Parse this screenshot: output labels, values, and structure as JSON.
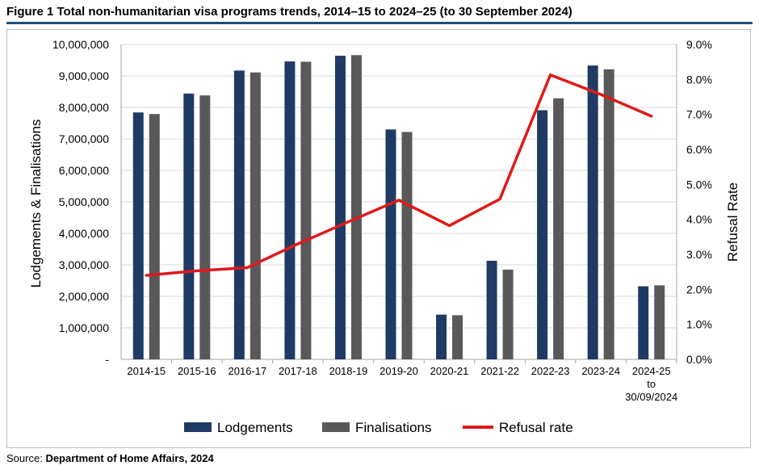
{
  "figure": {
    "title": "Figure 1 Total non-humanitarian visa programs trends, 2014–15 to 2024–25 (to 30 September 2024)"
  },
  "source": {
    "label": "Source:",
    "text": "Department of Home Affairs, 2024"
  },
  "colors": {
    "lodgements": "#1f3b64",
    "finalisations": "#595959",
    "refusal": "#e0191b",
    "grid": "#d9d9d9",
    "axis": "#a6a6a6"
  },
  "chart_data": {
    "type": "bar",
    "title": "Total non-humanitarian visa programs trends",
    "categories": [
      "2014-15",
      "2015-16",
      "2016-17",
      "2017-18",
      "2018-19",
      "2019-20",
      "2020-21",
      "2021-22",
      "2022-23",
      "2023-24",
      "2024-25\nto\n30/09/2024"
    ],
    "series": [
      {
        "name": "Lodgements",
        "kind": "bar",
        "axis": "left",
        "values": [
          7840000,
          8440000,
          9170000,
          9460000,
          9640000,
          7300000,
          1420000,
          3130000,
          7910000,
          9330000,
          2320000
        ]
      },
      {
        "name": "Finalisations",
        "kind": "bar",
        "axis": "left",
        "values": [
          7790000,
          8380000,
          9110000,
          9450000,
          9660000,
          7220000,
          1400000,
          2850000,
          8290000,
          9210000,
          2350000
        ]
      },
      {
        "name": "Refusal rate",
        "kind": "line",
        "axis": "right",
        "values": [
          0.024,
          0.0253,
          0.0262,
          0.033,
          0.0393,
          0.0455,
          0.0382,
          0.0458,
          0.0813,
          0.0757,
          0.0695
        ]
      }
    ],
    "ylabel": "Lodgements & Finalisations",
    "y2label": "Refusal Rate",
    "ylim": [
      0,
      10000000
    ],
    "y2lim": [
      0,
      0.09
    ],
    "yticks": [
      "-",
      "1,000,000",
      "2,000,000",
      "3,000,000",
      "4,000,000",
      "5,000,000",
      "6,000,000",
      "7,000,000",
      "8,000,000",
      "9,000,000",
      "10,000,000"
    ],
    "y2ticks": [
      "0.0%",
      "1.0%",
      "2.0%",
      "3.0%",
      "4.0%",
      "5.0%",
      "6.0%",
      "7.0%",
      "8.0%",
      "9.0%"
    ],
    "legend": [
      "Lodgements",
      "Finalisations",
      "Refusal rate"
    ],
    "legend_position": "bottom",
    "grid": true
  }
}
